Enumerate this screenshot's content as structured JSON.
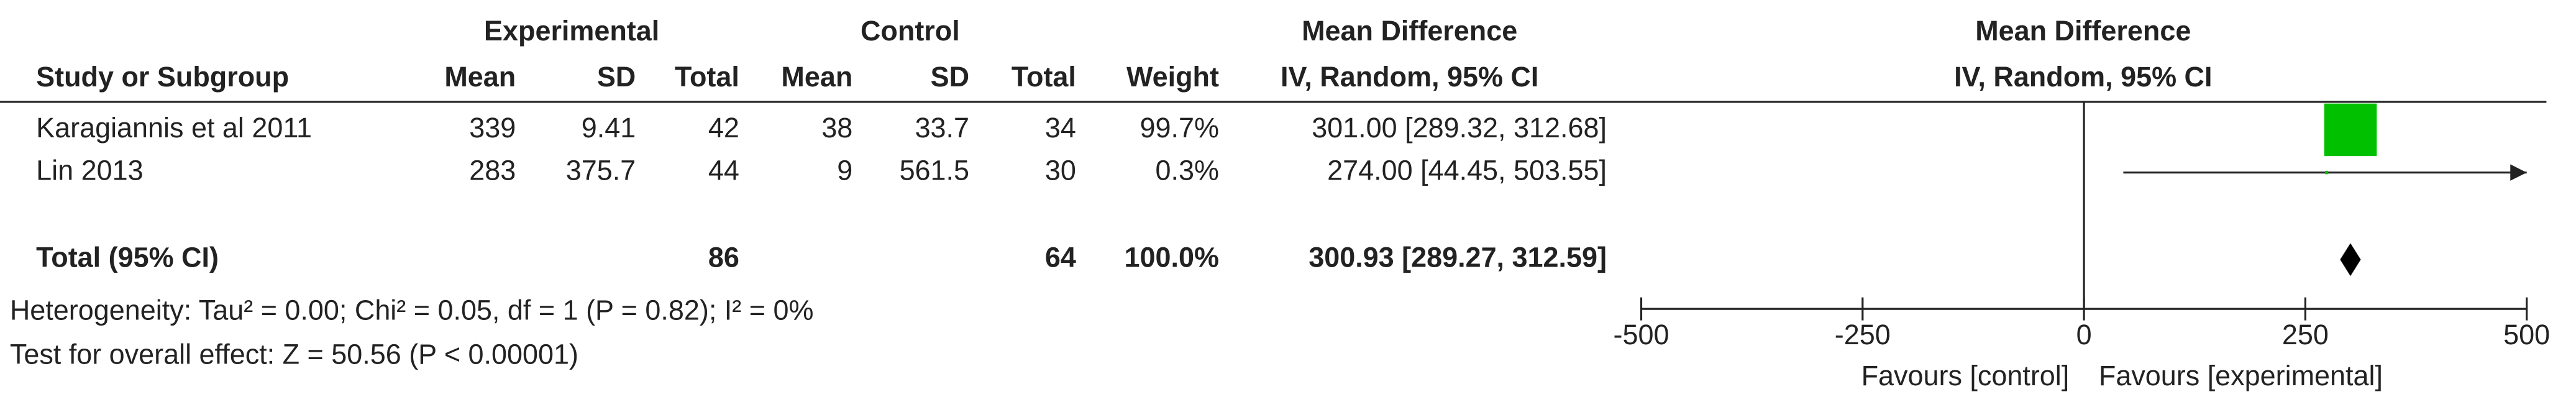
{
  "chart_data": {
    "type": "forest",
    "group_headers": [
      "Experimental",
      "Control",
      "Mean Difference",
      "Mean Difference"
    ],
    "columns": [
      "Study or Subgroup",
      "Mean",
      "SD",
      "Total",
      "Mean",
      "SD",
      "Total",
      "Weight",
      "IV, Random, 95% CI",
      "IV, Random, 95% CI"
    ],
    "studies": [
      {
        "name": "Karagiannis et al 2011",
        "exp_mean": 339,
        "exp_sd": 9.41,
        "exp_total": 42,
        "ctrl_mean": 38,
        "ctrl_sd": 33.7,
        "ctrl_total": 34,
        "weight": 99.7,
        "weight_label": "99.7%",
        "md": 301,
        "ci_low": 289.32,
        "ci_high": 312.68,
        "ci_label": "301.00 [289.32, 312.68]"
      },
      {
        "name": "Lin 2013",
        "exp_mean": 283,
        "exp_sd": 375.7,
        "exp_total": 44,
        "ctrl_mean": 9,
        "ctrl_sd": 561.5,
        "ctrl_total": 30,
        "weight": 0.3,
        "weight_label": "0.3%",
        "md": 274,
        "ci_low": 44.45,
        "ci_high": 503.55,
        "ci_label": "274.00 [44.45, 503.55]"
      }
    ],
    "total": {
      "name": "Total (95% CI)",
      "exp_total": 86,
      "ctrl_total": 64,
      "weight": 100,
      "weight_label": "100.0%",
      "md": 300.93,
      "ci_low": 289.27,
      "ci_high": 312.59,
      "ci_label": "300.93 [289.27, 312.59]"
    },
    "heterogeneity": "Heterogeneity: Tau² = 0.00; Chi² = 0.05, df = 1 (P = 0.82); I² = 0%",
    "overall_effect": "Test for overall effect: Z = 50.56 (P < 0.00001)",
    "xlim": [
      -500,
      500
    ],
    "xticks": [
      -500,
      -250,
      0,
      250,
      500
    ],
    "favours_left": "Favours [control]",
    "favours_right": "Favours [experimental]",
    "study_color": "#00c000",
    "total_color": "#000000"
  }
}
